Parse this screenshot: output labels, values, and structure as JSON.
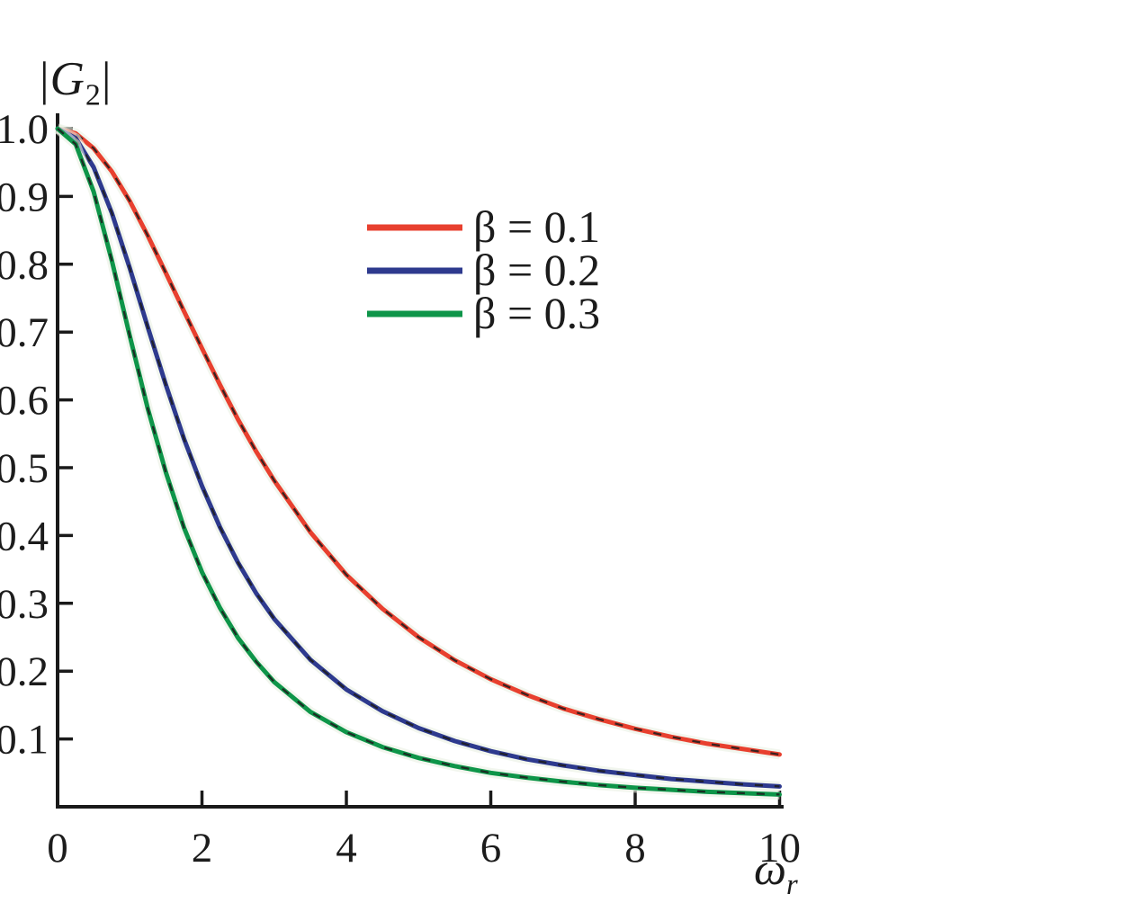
{
  "figure": {
    "background": "#ffffff",
    "y_axis_label": {
      "pre": "|",
      "symbol": "G",
      "subscript": "2",
      "post": "|"
    },
    "x_axis_label": {
      "symbol": "ω",
      "subscript": "r"
    }
  },
  "chart_data": {
    "type": "line",
    "title": "",
    "xlabel": "ω_r",
    "ylabel": "|G_2|",
    "xlim": [
      0,
      10
    ],
    "ylim": [
      0,
      1.0
    ],
    "grid": false,
    "legend_position": "inside upper-center-left",
    "axis_color": "#1a1a1a",
    "dash_overlay_color": "#1c1c1c",
    "halo_color": "#e9f0e2",
    "x_ticks": {
      "values": [
        0,
        2,
        4,
        6,
        8,
        10
      ],
      "labels": [
        "0",
        "2",
        "4",
        "6",
        "8",
        "10"
      ]
    },
    "y_ticks": {
      "values": [
        1.0,
        0.9,
        0.8,
        0.7,
        0.6,
        0.5,
        0.4,
        0.3,
        0.2,
        0.1
      ],
      "labels": [
        "1.0",
        "0.9",
        "0.8",
        "0.7",
        "0.6",
        "0.5",
        "0.4",
        "0.3",
        "0.2",
        "0.1"
      ]
    },
    "x_samples": [
      0,
      0.25,
      0.5,
      0.75,
      1,
      1.25,
      1.5,
      1.75,
      2,
      2.25,
      2.5,
      2.75,
      3,
      3.5,
      4,
      4.5,
      5,
      5.5,
      6,
      6.5,
      7,
      7.5,
      8,
      8.5,
      9,
      9.5,
      10
    ],
    "series": [
      {
        "name": "β = 0.1",
        "color": "#e8402f",
        "values": [
          1.0,
          0.993,
          0.971,
          0.937,
          0.893,
          0.842,
          0.787,
          0.731,
          0.676,
          0.622,
          0.571,
          0.524,
          0.481,
          0.405,
          0.342,
          0.292,
          0.25,
          0.216,
          0.188,
          0.165,
          0.145,
          0.129,
          0.115,
          0.103,
          0.093,
          0.085,
          0.077
        ]
      },
      {
        "name": "β = 0.2",
        "color": "#2e3a8e",
        "values": [
          1.0,
          0.986,
          0.943,
          0.876,
          0.794,
          0.707,
          0.622,
          0.543,
          0.473,
          0.412,
          0.36,
          0.315,
          0.277,
          0.217,
          0.173,
          0.141,
          0.116,
          0.097,
          0.082,
          0.07,
          0.061,
          0.053,
          0.047,
          0.041,
          0.037,
          0.033,
          0.03
        ]
      },
      {
        "name": "β = 0.3",
        "color": "#0e9549",
        "values": [
          1.0,
          0.977,
          0.907,
          0.806,
          0.694,
          0.587,
          0.493,
          0.412,
          0.346,
          0.293,
          0.249,
          0.214,
          0.184,
          0.14,
          0.11,
          0.088,
          0.072,
          0.06,
          0.05,
          0.043,
          0.037,
          0.032,
          0.028,
          0.025,
          0.022,
          0.02,
          0.018
        ]
      }
    ]
  }
}
